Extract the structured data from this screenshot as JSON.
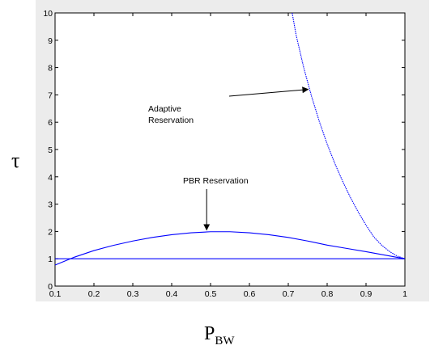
{
  "chart_data": {
    "type": "line",
    "xlabel": "P",
    "xlabel_sub": "BW",
    "ylabel": "τ",
    "xlim": [
      0.1,
      1
    ],
    "ylim": [
      0,
      10
    ],
    "xticks": [
      "0.1",
      "0.2",
      "0.3",
      "0.4",
      "0.5",
      "0.6",
      "0.7",
      "0.8",
      "0.9",
      "1"
    ],
    "yticks": [
      "0",
      "1",
      "2",
      "3",
      "4",
      "5",
      "6",
      "7",
      "8",
      "9",
      "10"
    ],
    "grid": false,
    "series": [
      {
        "name": "Adaptive Reservation",
        "color": "#0000ff",
        "style": "dotted",
        "x": [
          0.71,
          0.72,
          0.74,
          0.76,
          0.78,
          0.8,
          0.82,
          0.84,
          0.86,
          0.88,
          0.9,
          0.92,
          0.94,
          0.96,
          0.98,
          1.0
        ],
        "y": [
          10.0,
          9.2,
          7.98,
          6.94,
          6.02,
          5.2,
          4.48,
          3.83,
          3.24,
          2.71,
          2.23,
          1.8,
          1.5,
          1.27,
          1.1,
          1.0
        ]
      },
      {
        "name": "PBR Reservation",
        "color": "#0000ff",
        "style": "solid",
        "x": [
          0.1,
          0.15,
          0.2,
          0.25,
          0.3,
          0.35,
          0.4,
          0.45,
          0.5,
          0.55,
          0.6,
          0.65,
          0.7,
          0.75,
          0.8,
          0.85,
          0.9,
          0.95,
          1.0
        ],
        "y": [
          0.77,
          1.06,
          1.3,
          1.49,
          1.65,
          1.78,
          1.88,
          1.95,
          1.99,
          1.99,
          1.95,
          1.88,
          1.78,
          1.65,
          1.5,
          1.38,
          1.26,
          1.13,
          1.0
        ]
      },
      {
        "color": "#0000ff",
        "style": "solid",
        "x": [
          0.1,
          1.0
        ],
        "y": [
          1.0,
          1.0
        ]
      }
    ],
    "annotations": [
      {
        "text": [
          "Adaptive",
          "Reservation"
        ],
        "arrow_to": [
          0.755,
          7.2
        ]
      },
      {
        "text": [
          "PBR Reservation"
        ],
        "arrow_to": [
          0.49,
          2.0
        ]
      }
    ]
  }
}
